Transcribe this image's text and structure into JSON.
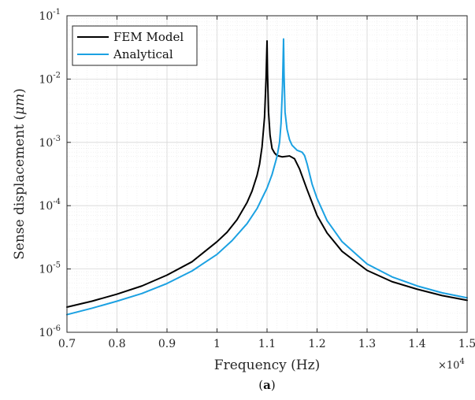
{
  "chart_data": {
    "type": "line",
    "xlabel": "Frequency (Hz)",
    "ylabel_main": "Sense displacement (",
    "ylabel_unit": "μm",
    "ylabel_close": ")",
    "x_multiplier": "×10",
    "x_multiplier_exp": "4",
    "caption_open": "(",
    "caption_letter": "a",
    "caption_close": ")",
    "xlim": [
      7000,
      15000
    ],
    "ylim": [
      1e-06,
      0.1
    ],
    "yscale": "log",
    "grid": true,
    "legend_position": "top-left",
    "x_ticks": [
      {
        "value": 7000,
        "label": "0.7"
      },
      {
        "value": 8000,
        "label": "0.8"
      },
      {
        "value": 9000,
        "label": "0.9"
      },
      {
        "value": 10000,
        "label": "1"
      },
      {
        "value": 11000,
        "label": "1.1"
      },
      {
        "value": 12000,
        "label": "1.2"
      },
      {
        "value": 13000,
        "label": "1.3"
      },
      {
        "value": 14000,
        "label": "1.4"
      },
      {
        "value": 15000,
        "label": "1.5"
      }
    ],
    "y_ticks": [
      {
        "value": 1e-06,
        "base": "10",
        "exp": "-6"
      },
      {
        "value": 1e-05,
        "base": "10",
        "exp": "-5"
      },
      {
        "value": 0.0001,
        "base": "10",
        "exp": "-4"
      },
      {
        "value": 0.001,
        "base": "10",
        "exp": "-3"
      },
      {
        "value": 0.01,
        "base": "10",
        "exp": "-2"
      },
      {
        "value": 0.1,
        "base": "10",
        "exp": "-1"
      }
    ],
    "series": [
      {
        "name": "FEM Model",
        "color": "#000000",
        "x": [
          7000,
          7500,
          8000,
          8500,
          9000,
          9500,
          10000,
          10200,
          10400,
          10600,
          10700,
          10800,
          10850,
          10900,
          10950,
          10980,
          11000,
          11010,
          11030,
          11060,
          11100,
          11150,
          11200,
          11300,
          11450,
          11550,
          11650,
          11800,
          12000,
          12200,
          12500,
          13000,
          13500,
          14000,
          14500,
          15000
        ],
        "y": [
          2.5e-06,
          3.1e-06,
          4e-06,
          5.4e-06,
          8e-06,
          1.3e-05,
          2.7e-05,
          3.8e-05,
          6e-05,
          0.000112,
          0.00017,
          0.0003,
          0.00045,
          0.00085,
          0.0025,
          0.01,
          0.04,
          0.012,
          0.003,
          0.0013,
          0.0008,
          0.00068,
          0.00062,
          0.00059,
          0.00061,
          0.00055,
          0.00038,
          0.00018,
          7e-05,
          3.7e-05,
          1.9e-05,
          9.5e-06,
          6.3e-06,
          4.8e-06,
          3.8e-06,
          3.2e-06
        ]
      },
      {
        "name": "Analytical",
        "color": "#1ba1e2",
        "x": [
          7000,
          7500,
          8000,
          8500,
          9000,
          9500,
          10000,
          10300,
          10600,
          10800,
          11000,
          11100,
          11200,
          11250,
          11280,
          11310,
          11330,
          11340,
          11360,
          11400,
          11450,
          11500,
          11600,
          11700,
          11750,
          11800,
          11900,
          12000,
          12200,
          12500,
          13000,
          13500,
          14000,
          14500,
          15000
        ],
        "y": [
          1.9e-06,
          2.4e-06,
          3.1e-06,
          4.1e-06,
          5.9e-06,
          9.3e-06,
          1.7e-05,
          2.8e-05,
          5.2e-05,
          9e-05,
          0.00019,
          0.00031,
          0.0006,
          0.001,
          0.002,
          0.008,
          0.043,
          0.012,
          0.003,
          0.0016,
          0.0011,
          0.0009,
          0.00075,
          0.0007,
          0.00062,
          0.00046,
          0.00022,
          0.00013,
          5.8e-05,
          2.7e-05,
          1.2e-05,
          7.5e-06,
          5.4e-06,
          4.2e-06,
          3.5e-06
        ]
      }
    ]
  }
}
